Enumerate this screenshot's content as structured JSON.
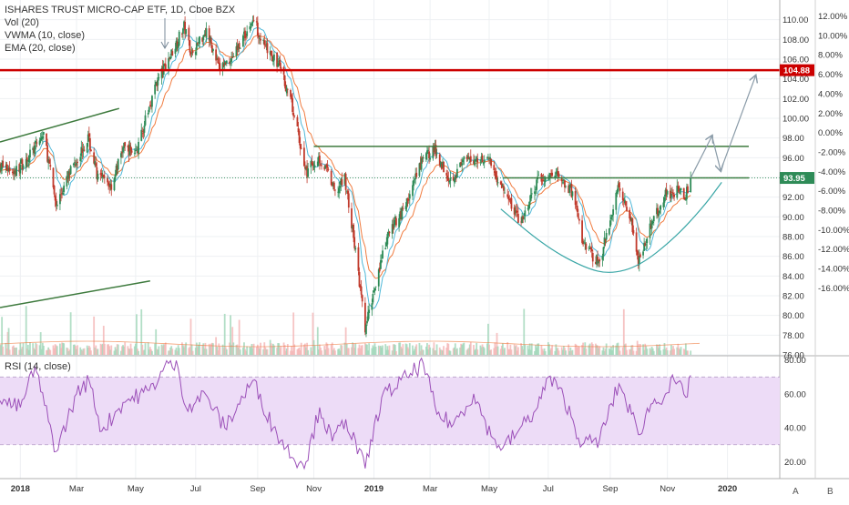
{
  "legend": {
    "title": "ISHARES TRUST MICRO-CAP ETF, 1D, Cboe BZX",
    "vol": "Vol (20)",
    "vwma": "VWMA (10, close)",
    "ema": "EMA (20, close)"
  },
  "rsi_legend": "RSI (14, close)",
  "corner_labels": {
    "a": "A",
    "b": "B"
  },
  "colors": {
    "up": "#2e8b57",
    "down": "#c0392b",
    "ema": "#f07b3f",
    "vwma": "#4fb8d8",
    "resistance": "#cc0000",
    "trend": "#3d7a3d",
    "arrow": "#8a9ba8",
    "rsi_line": "#9b4fb8",
    "rsi_band": "#eddcf7",
    "vol_up": "#9fd6b8",
    "vol_down": "#f4b4b4"
  },
  "chart_data": [
    {
      "type": "candlestick",
      "title": "ISHARES TRUST MICRO-CAP ETF, 1D, Cboe BZX",
      "ylim": [
        76,
        112
      ],
      "xlim": [
        "2017-12-12",
        "2020-02-25"
      ],
      "x_tick_labels": [
        {
          "label": "2018",
          "date": "2018-01-02"
        },
        {
          "label": "Mar",
          "date": "2018-03-01"
        },
        {
          "label": "May",
          "date": "2018-05-01"
        },
        {
          "label": "Jul",
          "date": "2018-07-02"
        },
        {
          "label": "Sep",
          "date": "2018-09-04"
        },
        {
          "label": "Nov",
          "date": "2018-11-01"
        },
        {
          "label": "2019",
          "date": "2019-01-02"
        },
        {
          "label": "Mar",
          "date": "2019-03-01"
        },
        {
          "label": "May",
          "date": "2019-05-01"
        },
        {
          "label": "Jul",
          "date": "2019-07-01"
        },
        {
          "label": "Sep",
          "date": "2019-09-03"
        },
        {
          "label": "Nov",
          "date": "2019-11-01"
        },
        {
          "label": "2020",
          "date": "2020-01-02"
        }
      ],
      "y_ticks": [
        76,
        78,
        80,
        82,
        84,
        86,
        88,
        90,
        92,
        94,
        96,
        98,
        100,
        102,
        104,
        106,
        108,
        110
      ],
      "y_tick_labels": [
        "76.00",
        "78.00",
        "80.00",
        "82.00",
        "84.00",
        "86.00",
        "88.00",
        "90.00",
        "92.00",
        "94.00",
        "96.00",
        "98.00",
        "100.00",
        "102.00",
        "104.00",
        "106.00",
        "108.00",
        "110.00"
      ],
      "percent_ticks": [
        {
          "value": 110.38,
          "label": "12.00%"
        },
        {
          "value": 108.41,
          "label": "10.00%"
        },
        {
          "value": 106.44,
          "label": "8.00%"
        },
        {
          "value": 104.47,
          "label": "6.00%"
        },
        {
          "value": 102.5,
          "label": "4.00%"
        },
        {
          "value": 100.53,
          "label": "2.00%"
        },
        {
          "value": 98.56,
          "label": "0.00%"
        },
        {
          "value": 96.59,
          "label": "-2.00%"
        },
        {
          "value": 94.62,
          "label": "-4.00%"
        },
        {
          "value": 92.65,
          "label": "-6.00%"
        },
        {
          "value": 90.68,
          "label": "-8.00%"
        },
        {
          "value": 88.71,
          "label": "-10.00%"
        },
        {
          "value": 86.74,
          "label": "-12.00%"
        },
        {
          "value": 84.77,
          "label": "-14.00%"
        },
        {
          "value": 82.8,
          "label": "-16.00%"
        }
      ],
      "price_tags": [
        {
          "value": 104.88,
          "label": "104.88",
          "color": "#cc0000"
        },
        {
          "value": 93.95,
          "label": "93.95",
          "color": "#2e8b57"
        }
      ],
      "price_path": [
        {
          "date": "2017-12-12",
          "close": 95.2
        },
        {
          "date": "2017-12-28",
          "close": 94.6
        },
        {
          "date": "2018-01-16",
          "close": 96.8
        },
        {
          "date": "2018-01-26",
          "close": 98.4
        },
        {
          "date": "2018-02-08",
          "close": 91.2
        },
        {
          "date": "2018-02-26",
          "close": 95.3
        },
        {
          "date": "2018-03-13",
          "close": 98.0
        },
        {
          "date": "2018-03-23",
          "close": 94.0
        },
        {
          "date": "2018-04-06",
          "close": 93.2
        },
        {
          "date": "2018-04-18",
          "close": 97.0
        },
        {
          "date": "2018-05-02",
          "close": 96.6
        },
        {
          "date": "2018-05-22",
          "close": 103.5
        },
        {
          "date": "2018-06-08",
          "close": 106.8
        },
        {
          "date": "2018-06-20",
          "close": 109.3
        },
        {
          "date": "2018-06-28",
          "close": 106.6
        },
        {
          "date": "2018-07-13",
          "close": 109.0
        },
        {
          "date": "2018-07-26",
          "close": 105.0
        },
        {
          "date": "2018-08-09",
          "close": 106.3
        },
        {
          "date": "2018-08-31",
          "close": 110.0
        },
        {
          "date": "2018-09-12",
          "close": 107.0
        },
        {
          "date": "2018-09-27",
          "close": 105.3
        },
        {
          "date": "2018-10-10",
          "close": 101.0
        },
        {
          "date": "2018-10-24",
          "close": 94.5
        },
        {
          "date": "2018-11-06",
          "close": 96.0
        },
        {
          "date": "2018-11-16",
          "close": 94.4
        },
        {
          "date": "2018-11-23",
          "close": 92.3
        },
        {
          "date": "2018-12-03",
          "close": 94.0
        },
        {
          "date": "2018-12-14",
          "close": 86.5
        },
        {
          "date": "2018-12-24",
          "close": 78.5
        },
        {
          "date": "2019-01-04",
          "close": 83.5
        },
        {
          "date": "2019-01-18",
          "close": 88.5
        },
        {
          "date": "2019-02-05",
          "close": 91.5
        },
        {
          "date": "2019-02-22",
          "close": 96.0
        },
        {
          "date": "2019-03-05",
          "close": 96.8
        },
        {
          "date": "2019-03-22",
          "close": 93.8
        },
        {
          "date": "2019-04-05",
          "close": 95.6
        },
        {
          "date": "2019-04-29",
          "close": 96.1
        },
        {
          "date": "2019-05-13",
          "close": 93.2
        },
        {
          "date": "2019-06-03",
          "close": 89.3
        },
        {
          "date": "2019-06-20",
          "close": 93.6
        },
        {
          "date": "2019-07-10",
          "close": 94.4
        },
        {
          "date": "2019-07-26",
          "close": 92.4
        },
        {
          "date": "2019-08-07",
          "close": 87.0
        },
        {
          "date": "2019-08-23",
          "close": 85.3
        },
        {
          "date": "2019-09-12",
          "close": 93.4
        },
        {
          "date": "2019-09-25",
          "close": 89.5
        },
        {
          "date": "2019-10-02",
          "close": 85.6
        },
        {
          "date": "2019-10-16",
          "close": 89.3
        },
        {
          "date": "2019-10-30",
          "close": 92.3
        },
        {
          "date": "2019-11-11",
          "close": 92.6
        },
        {
          "date": "2019-11-20",
          "close": 92.3
        },
        {
          "date": "2019-11-25",
          "close": 93.95
        }
      ],
      "horizontal_lines": [
        {
          "name": "resistance-104-88",
          "value": 104.88,
          "from": "2017-12-12",
          "to": "2020-02-25",
          "color": "#cc0000",
          "width": 2.5
        },
        {
          "name": "neckline-upper",
          "value": 97.15,
          "from": "2018-11-01",
          "to": "2020-01-24",
          "color": "#3d7a3d",
          "width": 1.5
        },
        {
          "name": "handle-line",
          "value": 93.95,
          "from": "2019-05-15",
          "to": "2020-01-24",
          "color": "#3d7a3d",
          "width": 1.5
        },
        {
          "name": "last-price-dotted",
          "value": 93.95,
          "from": "2017-12-12",
          "to": "2020-02-25",
          "color": "#2e8b57",
          "width": 0.8,
          "dash": true
        }
      ],
      "trend_lines": [
        {
          "name": "upper-trendline",
          "from": {
            "date": "2017-12-12",
            "value": 97.6
          },
          "to": {
            "date": "2018-04-14",
            "value": 101.0
          }
        },
        {
          "name": "lower-trendline",
          "from": {
            "date": "2017-12-12",
            "value": 80.8
          },
          "to": {
            "date": "2018-05-16",
            "value": 83.5
          }
        }
      ],
      "cup_arc": {
        "name": "rounding-bottom-arc",
        "points": [
          {
            "date": "2019-05-13",
            "value": 90.8
          },
          {
            "date": "2019-06-28",
            "value": 87.0
          },
          {
            "date": "2019-08-08",
            "value": 84.8
          },
          {
            "date": "2019-09-03",
            "value": 84.2
          },
          {
            "date": "2019-10-03",
            "value": 85.0
          },
          {
            "date": "2019-11-08",
            "value": 87.8
          },
          {
            "date": "2019-12-09",
            "value": 91.1
          },
          {
            "date": "2019-12-27",
            "value": 93.5
          }
        ]
      },
      "projection_arrows": [
        {
          "from": {
            "date": "2019-11-25",
            "value": 93.95
          },
          "to": {
            "date": "2019-12-17",
            "value": 98.2
          }
        },
        {
          "from": {
            "date": "2019-12-17",
            "value": 98.2
          },
          "to": {
            "date": "2019-12-26",
            "value": 94.7
          }
        },
        {
          "from": {
            "date": "2019-12-26",
            "value": 94.7
          },
          "to": {
            "date": "2020-01-31",
            "value": 104.3
          }
        }
      ]
    },
    {
      "type": "line",
      "title": "RSI (14, close)",
      "ylim": [
        10,
        82
      ],
      "y_ticks": [
        20,
        40,
        60,
        80
      ],
      "y_tick_labels": [
        "20.00",
        "40.00",
        "60.00",
        "80.00"
      ],
      "band": [
        30,
        70
      ],
      "series": [
        {
          "name": "RSI (14, close)",
          "points": [
            {
              "date": "2017-12-12",
              "value": 56
            },
            {
              "date": "2018-01-02",
              "value": 52
            },
            {
              "date": "2018-01-17",
              "value": 76
            },
            {
              "date": "2018-02-08",
              "value": 26
            },
            {
              "date": "2018-03-01",
              "value": 60
            },
            {
              "date": "2018-03-14",
              "value": 68
            },
            {
              "date": "2018-03-27",
              "value": 38
            },
            {
              "date": "2018-04-18",
              "value": 55
            },
            {
              "date": "2018-05-15",
              "value": 62
            },
            {
              "date": "2018-06-04",
              "value": 78
            },
            {
              "date": "2018-06-14",
              "value": 75
            },
            {
              "date": "2018-06-22",
              "value": 52
            },
            {
              "date": "2018-07-12",
              "value": 60
            },
            {
              "date": "2018-08-01",
              "value": 40
            },
            {
              "date": "2018-08-30",
              "value": 68
            },
            {
              "date": "2018-09-20",
              "value": 40
            },
            {
              "date": "2018-10-11",
              "value": 22
            },
            {
              "date": "2018-10-24",
              "value": 20
            },
            {
              "date": "2018-11-07",
              "value": 52
            },
            {
              "date": "2018-11-20",
              "value": 32
            },
            {
              "date": "2018-12-04",
              "value": 45
            },
            {
              "date": "2018-12-24",
              "value": 16
            },
            {
              "date": "2019-01-10",
              "value": 58
            },
            {
              "date": "2019-02-05",
              "value": 70
            },
            {
              "date": "2019-02-22",
              "value": 78
            },
            {
              "date": "2019-03-08",
              "value": 48
            },
            {
              "date": "2019-03-25",
              "value": 42
            },
            {
              "date": "2019-04-15",
              "value": 60
            },
            {
              "date": "2019-05-03",
              "value": 35
            },
            {
              "date": "2019-05-15",
              "value": 28
            },
            {
              "date": "2019-05-31",
              "value": 38
            },
            {
              "date": "2019-06-20",
              "value": 52
            },
            {
              "date": "2019-07-01",
              "value": 70
            },
            {
              "date": "2019-07-17",
              "value": 58
            },
            {
              "date": "2019-08-05",
              "value": 30
            },
            {
              "date": "2019-08-23",
              "value": 33
            },
            {
              "date": "2019-09-12",
              "value": 66
            },
            {
              "date": "2019-09-25",
              "value": 48
            },
            {
              "date": "2019-10-02",
              "value": 36
            },
            {
              "date": "2019-10-15",
              "value": 54
            },
            {
              "date": "2019-10-30",
              "value": 60
            },
            {
              "date": "2019-11-08",
              "value": 68
            },
            {
              "date": "2019-11-20",
              "value": 58
            },
            {
              "date": "2019-11-25",
              "value": 71
            }
          ]
        }
      ],
      "x_tick_labels": [
        {
          "label": "2018",
          "date": "2018-01-02"
        },
        {
          "label": "Mar",
          "date": "2018-03-01"
        },
        {
          "label": "May",
          "date": "2018-05-01"
        },
        {
          "label": "Jul",
          "date": "2018-07-02"
        },
        {
          "label": "Sep",
          "date": "2018-09-04"
        },
        {
          "label": "Nov",
          "date": "2018-11-01"
        },
        {
          "label": "2019",
          "date": "2019-01-02"
        },
        {
          "label": "Mar",
          "date": "2019-03-01"
        },
        {
          "label": "May",
          "date": "2019-05-01"
        },
        {
          "label": "Jul",
          "date": "2019-07-01"
        },
        {
          "label": "Sep",
          "date": "2019-09-03"
        },
        {
          "label": "Nov",
          "date": "2019-11-01"
        },
        {
          "label": "2020",
          "date": "2020-01-02"
        }
      ]
    }
  ]
}
